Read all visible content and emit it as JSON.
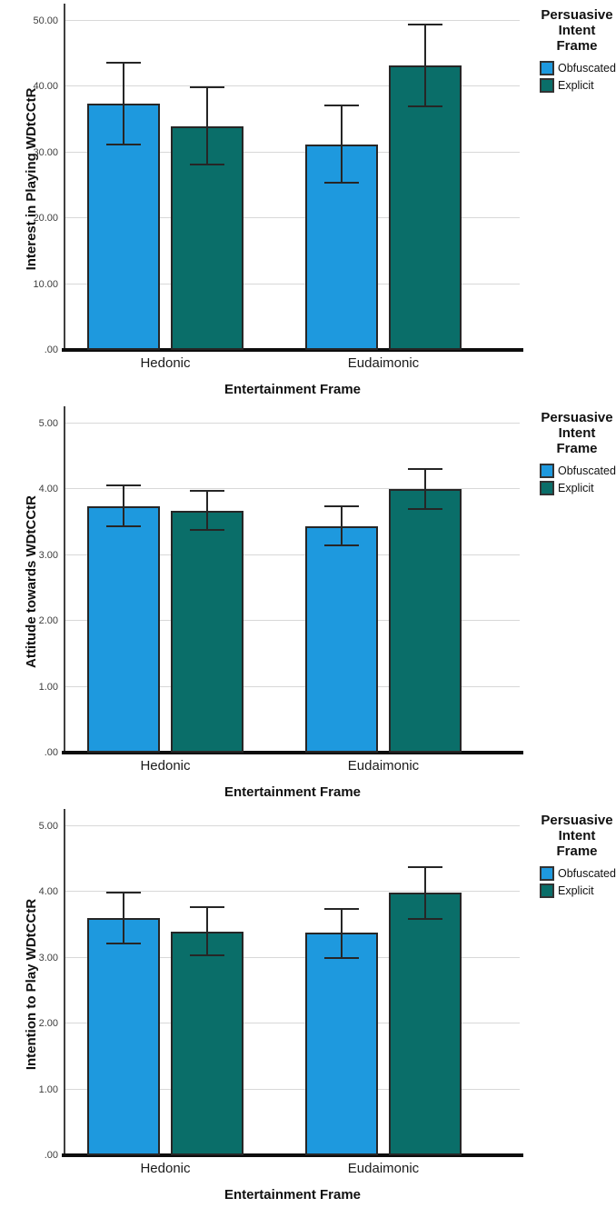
{
  "figure": {
    "x_axis_label": "Entertainment Frame",
    "categories": [
      "Hedonic",
      "Eudaimonic"
    ],
    "legend": {
      "title_lines": [
        "Persuasive",
        "Intent",
        "Frame"
      ],
      "position": "top-right",
      "items": [
        {
          "label": "Obfuscated",
          "color": "#1E99DE"
        },
        {
          "label": "Explicit",
          "color": "#0A6E69"
        }
      ]
    }
  },
  "chart_data": [
    {
      "type": "bar",
      "title": "",
      "ylabel": "Interest in Playing WDtCCtR",
      "xlabel": "Entertainment Frame",
      "categories": [
        "Hedonic",
        "Eudaimonic"
      ],
      "ylim": [
        0,
        52
      ],
      "grid": true,
      "legend_position": "top-right",
      "ticks": [
        {
          "label": ".00",
          "value": 0
        },
        {
          "label": "10.00",
          "value": 10
        },
        {
          "label": "20.00",
          "value": 20
        },
        {
          "label": "30.00",
          "value": 30
        },
        {
          "label": "40.00",
          "value": 40
        },
        {
          "label": "50.00",
          "value": 50
        }
      ],
      "series": [
        {
          "name": "Obfuscated",
          "color": "#1E99DE",
          "values": [
            37.4,
            31.2
          ],
          "error_low": [
            31.2,
            25.4
          ],
          "error_high": [
            43.6,
            37.1
          ]
        },
        {
          "name": "Explicit",
          "color": "#0A6E69",
          "values": [
            34.0,
            43.2
          ],
          "error_low": [
            28.2,
            37.0
          ],
          "error_high": [
            39.9,
            49.4
          ]
        }
      ]
    },
    {
      "type": "bar",
      "title": "",
      "ylabel": "Attitude towards WDtCCtR",
      "xlabel": "Entertainment Frame",
      "categories": [
        "Hedonic",
        "Eudaimonic"
      ],
      "ylim": [
        0,
        5.2
      ],
      "grid": true,
      "legend_position": "top-right",
      "ticks": [
        {
          "label": ".00",
          "value": 0
        },
        {
          "label": "1.00",
          "value": 1
        },
        {
          "label": "2.00",
          "value": 2
        },
        {
          "label": "3.00",
          "value": 3
        },
        {
          "label": "4.00",
          "value": 4
        },
        {
          "label": "5.00",
          "value": 5
        }
      ],
      "series": [
        {
          "name": "Obfuscated",
          "color": "#1E99DE",
          "values": [
            3.74,
            3.44
          ],
          "error_low": [
            3.43,
            3.14
          ],
          "error_high": [
            4.05,
            3.74
          ]
        },
        {
          "name": "Explicit",
          "color": "#0A6E69",
          "values": [
            3.67,
            4.0
          ],
          "error_low": [
            3.38,
            3.69
          ],
          "error_high": [
            3.97,
            4.31
          ]
        }
      ]
    },
    {
      "type": "bar",
      "title": "",
      "ylabel": "Intention to Play WDtCCtR",
      "xlabel": "Entertainment Frame",
      "categories": [
        "Hedonic",
        "Eudaimonic"
      ],
      "ylim": [
        0,
        5.2
      ],
      "grid": true,
      "legend_position": "top-right",
      "ticks": [
        {
          "label": ".00",
          "value": 0
        },
        {
          "label": "1.00",
          "value": 1
        },
        {
          "label": "2.00",
          "value": 2
        },
        {
          "label": "3.00",
          "value": 3
        },
        {
          "label": "4.00",
          "value": 4
        },
        {
          "label": "5.00",
          "value": 5
        }
      ],
      "series": [
        {
          "name": "Obfuscated",
          "color": "#1E99DE",
          "values": [
            3.6,
            3.38
          ],
          "error_low": [
            3.22,
            3.0
          ],
          "error_high": [
            3.99,
            3.74
          ]
        },
        {
          "name": "Explicit",
          "color": "#0A6E69",
          "values": [
            3.4,
            3.98
          ],
          "error_low": [
            3.03,
            3.59
          ],
          "error_high": [
            3.76,
            4.37
          ]
        }
      ]
    }
  ]
}
